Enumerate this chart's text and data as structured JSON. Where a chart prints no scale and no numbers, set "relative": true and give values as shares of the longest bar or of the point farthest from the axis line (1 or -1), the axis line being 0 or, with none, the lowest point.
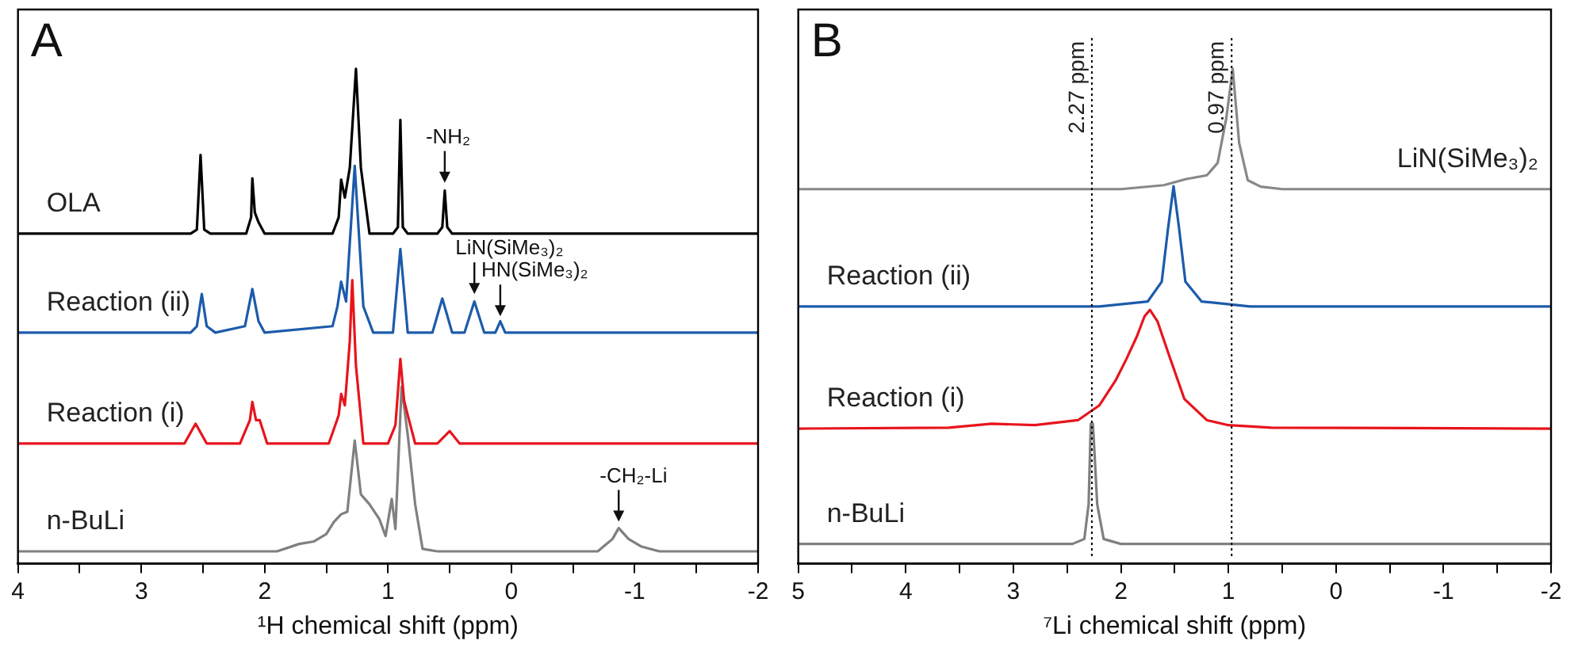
{
  "chart_data": [
    {
      "type": "line",
      "relative": true,
      "xlabel": "¹H chemical shift (ppm)",
      "xlim": [
        4,
        -2
      ],
      "xticks": [
        4,
        {
          "value": 3.5,
          "label": null
        },
        3,
        {
          "value": 2.5,
          "label": null
        },
        2,
        {
          "value": 1.5,
          "label": null
        },
        1,
        {
          "value": 0.5,
          "label": null
        },
        0,
        {
          "value": -0.5,
          "label": null
        },
        -1,
        {
          "value": -1.5,
          "label": null
        },
        -2
      ],
      "tick_labels": "x",
      "marker": "none",
      "line_style": "solid",
      "annotations": [
        "A",
        {
          "text": "-NH₂",
          "x": 0.54,
          "y": 0.77
        },
        {
          "text": "LiN(SiMe₃)₂",
          "x": 0.3,
          "y": 0.545
        },
        {
          "text": "HN(SiMe₃)₂",
          "x": 0.09,
          "y": 0.5
        },
        {
          "text": "-CH₂-Li",
          "x": -0.87,
          "y": 0.085
        }
      ],
      "series": [
        {
          "name": "OLA",
          "color": "#000000",
          "x": [
            4,
            2.6,
            2.55,
            2.52,
            2.49,
            2.44,
            2.15,
            2.11,
            2.1,
            2.08,
            2.05,
            2.0,
            1.45,
            1.4,
            1.38,
            1.35,
            1.31,
            1.26,
            1.22,
            1.15,
            0.96,
            0.92,
            0.9,
            0.88,
            0.84,
            0.6,
            0.56,
            0.54,
            0.52,
            0.48,
            -2
          ],
          "values": [
            0.667,
            0.667,
            0.675,
            0.826,
            0.675,
            0.667,
            0.667,
            0.7,
            0.779,
            0.71,
            0.69,
            0.667,
            0.667,
            0.7,
            0.776,
            0.74,
            0.8,
            1.0,
            0.8,
            0.667,
            0.667,
            0.68,
            0.897,
            0.68,
            0.667,
            0.667,
            0.68,
            0.754,
            0.68,
            0.667,
            0.667
          ]
        },
        {
          "name": "Reaction (ii)",
          "color": "#1c5bab",
          "x": [
            4,
            2.6,
            2.55,
            2.51,
            2.47,
            2.4,
            2.16,
            2.1,
            2.05,
            2.0,
            1.45,
            1.41,
            1.38,
            1.34,
            1.27,
            1.2,
            1.12,
            0.96,
            0.9,
            0.84,
            0.64,
            0.56,
            0.48,
            0.38,
            0.3,
            0.22,
            0.13,
            0.09,
            0.05,
            -2
          ],
          "values": [
            0.467,
            0.467,
            0.48,
            0.545,
            0.48,
            0.467,
            0.48,
            0.555,
            0.49,
            0.467,
            0.48,
            0.52,
            0.57,
            0.53,
            0.804,
            0.52,
            0.467,
            0.467,
            0.636,
            0.467,
            0.467,
            0.536,
            0.467,
            0.467,
            0.53,
            0.467,
            0.467,
            0.49,
            0.467,
            0.467
          ]
        },
        {
          "name": "Reaction (i)",
          "color": "#e8141c",
          "x": [
            4,
            2.65,
            2.56,
            2.47,
            2.2,
            2.12,
            2.1,
            2.07,
            2.04,
            1.98,
            1.48,
            1.4,
            1.38,
            1.35,
            1.31,
            1.29,
            1.26,
            1.2,
            1.0,
            0.94,
            0.9,
            0.87,
            0.84,
            0.78,
            0.6,
            0.5,
            0.42,
            -2
          ],
          "values": [
            0.243,
            0.243,
            0.283,
            0.243,
            0.243,
            0.29,
            0.327,
            0.29,
            0.29,
            0.243,
            0.243,
            0.3,
            0.343,
            0.32,
            0.45,
            0.573,
            0.4,
            0.243,
            0.243,
            0.28,
            0.414,
            0.33,
            0.3,
            0.243,
            0.243,
            0.268,
            0.243,
            0.243
          ]
        },
        {
          "name": "n-BuLi",
          "color": "#808080",
          "x": [
            4,
            1.9,
            1.72,
            1.6,
            1.5,
            1.44,
            1.38,
            1.33,
            1.27,
            1.22,
            1.15,
            1.07,
            1.02,
            0.97,
            0.94,
            0.89,
            0.84,
            0.78,
            0.72,
            0.6,
            -0.7,
            -0.82,
            -0.87,
            -0.95,
            -1.05,
            -1.2,
            -2
          ],
          "values": [
            0.025,
            0.025,
            0.04,
            0.045,
            0.06,
            0.084,
            0.1,
            0.105,
            0.249,
            0.14,
            0.12,
            0.09,
            0.056,
            0.131,
            0.07,
            0.358,
            0.26,
            0.12,
            0.03,
            0.025,
            0.025,
            0.05,
            0.072,
            0.05,
            0.035,
            0.025,
            0.025
          ]
        }
      ]
    },
    {
      "type": "line",
      "relative": true,
      "xlabel": "⁷Li chemical shift (ppm)",
      "xlim": [
        5,
        -2
      ],
      "xticks": [
        5,
        {
          "value": 4.5,
          "label": null
        },
        4,
        {
          "value": 3.5,
          "label": null
        },
        3,
        {
          "value": 2.5,
          "label": null
        },
        2,
        {
          "value": 1.5,
          "label": null
        },
        1,
        {
          "value": 0.5,
          "label": null
        },
        0,
        {
          "value": -0.5,
          "label": null
        },
        -1,
        {
          "value": -1.5,
          "label": null
        },
        -2
      ],
      "tick_labels": "x",
      "marker": "none",
      "line_style": "solid",
      "annotations": [
        "B"
      ],
      "ref_lines": [
        {
          "axis": "x",
          "value": 2.27,
          "label": "2.27 ppm",
          "line_style": "dotted",
          "color": "#000000"
        },
        {
          "axis": "x",
          "value": 0.97,
          "label": "0.97 ppm",
          "line_style": "dotted",
          "color": "#000000"
        }
      ],
      "series": [
        {
          "name": "LiN(SiMe₃)₂",
          "color": "#888888",
          "x": [
            5,
            2.0,
            1.6,
            1.4,
            1.2,
            1.1,
            1.02,
            0.96,
            0.9,
            0.82,
            0.7,
            0.5,
            -2
          ],
          "values": [
            0.757,
            0.757,
            0.765,
            0.777,
            0.785,
            0.81,
            0.9,
            1.0,
            0.85,
            0.775,
            0.762,
            0.757,
            0.757
          ]
        },
        {
          "name": "Reaction (ii)",
          "color": "#1c5bab",
          "x": [
            5,
            2.2,
            1.75,
            1.62,
            1.56,
            1.51,
            1.46,
            1.4,
            1.25,
            0.8,
            -2
          ],
          "values": [
            0.52,
            0.52,
            0.53,
            0.57,
            0.68,
            0.763,
            0.68,
            0.57,
            0.53,
            0.52,
            0.52
          ]
        },
        {
          "name": "Reaction (i)",
          "color": "#e8141c",
          "x": [
            5,
            3.6,
            3.2,
            2.8,
            2.4,
            2.2,
            2.05,
            1.95,
            1.85,
            1.78,
            1.73,
            1.66,
            1.55,
            1.41,
            1.2,
            1.0,
            0.6,
            -2
          ],
          "values": [
            0.273,
            0.275,
            0.283,
            0.28,
            0.29,
            0.32,
            0.37,
            0.413,
            0.46,
            0.5,
            0.513,
            0.49,
            0.42,
            0.333,
            0.29,
            0.28,
            0.275,
            0.273
          ]
        },
        {
          "name": "n-BuLi",
          "color": "#808080",
          "x": [
            5,
            2.45,
            2.34,
            2.3,
            2.28,
            2.26,
            2.22,
            2.16,
            2.0,
            -2
          ],
          "values": [
            0.04,
            0.04,
            0.05,
            0.12,
            0.283,
            0.283,
            0.12,
            0.05,
            0.04,
            0.04
          ]
        }
      ]
    }
  ]
}
